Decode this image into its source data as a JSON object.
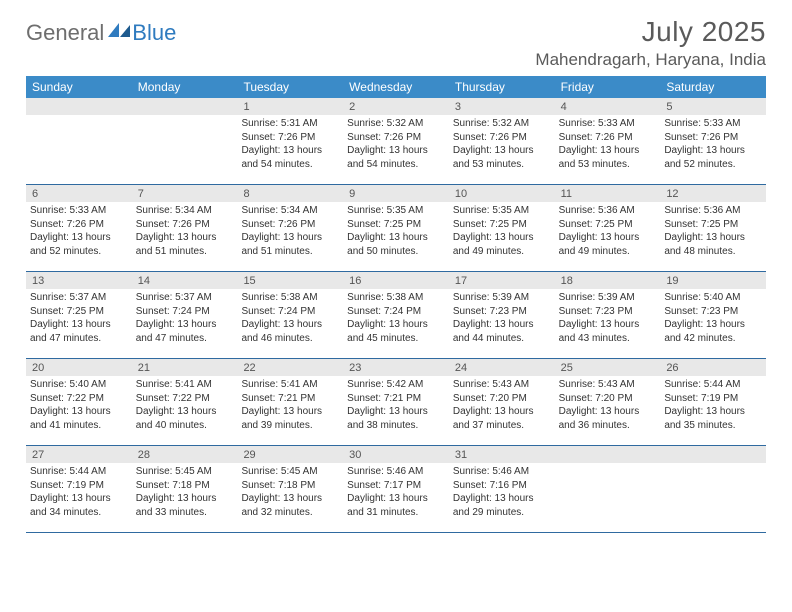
{
  "brand": {
    "part1": "General",
    "part2": "Blue"
  },
  "title": "July 2025",
  "location": "Mahendragarh, Haryana, India",
  "colors": {
    "header_bg": "#3b8bc8",
    "row_border": "#2f6aa0",
    "daynum_bg": "#e8e8e8",
    "text": "#333333",
    "title_text": "#5a5a5a"
  },
  "weekdays": [
    "Sunday",
    "Monday",
    "Tuesday",
    "Wednesday",
    "Thursday",
    "Friday",
    "Saturday"
  ],
  "weeks": [
    [
      {
        "n": "",
        "lines": []
      },
      {
        "n": "",
        "lines": []
      },
      {
        "n": "1",
        "lines": [
          "Sunrise: 5:31 AM",
          "Sunset: 7:26 PM",
          "Daylight: 13 hours and 54 minutes."
        ]
      },
      {
        "n": "2",
        "lines": [
          "Sunrise: 5:32 AM",
          "Sunset: 7:26 PM",
          "Daylight: 13 hours and 54 minutes."
        ]
      },
      {
        "n": "3",
        "lines": [
          "Sunrise: 5:32 AM",
          "Sunset: 7:26 PM",
          "Daylight: 13 hours and 53 minutes."
        ]
      },
      {
        "n": "4",
        "lines": [
          "Sunrise: 5:33 AM",
          "Sunset: 7:26 PM",
          "Daylight: 13 hours and 53 minutes."
        ]
      },
      {
        "n": "5",
        "lines": [
          "Sunrise: 5:33 AM",
          "Sunset: 7:26 PM",
          "Daylight: 13 hours and 52 minutes."
        ]
      }
    ],
    [
      {
        "n": "6",
        "lines": [
          "Sunrise: 5:33 AM",
          "Sunset: 7:26 PM",
          "Daylight: 13 hours and 52 minutes."
        ]
      },
      {
        "n": "7",
        "lines": [
          "Sunrise: 5:34 AM",
          "Sunset: 7:26 PM",
          "Daylight: 13 hours and 51 minutes."
        ]
      },
      {
        "n": "8",
        "lines": [
          "Sunrise: 5:34 AM",
          "Sunset: 7:26 PM",
          "Daylight: 13 hours and 51 minutes."
        ]
      },
      {
        "n": "9",
        "lines": [
          "Sunrise: 5:35 AM",
          "Sunset: 7:25 PM",
          "Daylight: 13 hours and 50 minutes."
        ]
      },
      {
        "n": "10",
        "lines": [
          "Sunrise: 5:35 AM",
          "Sunset: 7:25 PM",
          "Daylight: 13 hours and 49 minutes."
        ]
      },
      {
        "n": "11",
        "lines": [
          "Sunrise: 5:36 AM",
          "Sunset: 7:25 PM",
          "Daylight: 13 hours and 49 minutes."
        ]
      },
      {
        "n": "12",
        "lines": [
          "Sunrise: 5:36 AM",
          "Sunset: 7:25 PM",
          "Daylight: 13 hours and 48 minutes."
        ]
      }
    ],
    [
      {
        "n": "13",
        "lines": [
          "Sunrise: 5:37 AM",
          "Sunset: 7:25 PM",
          "Daylight: 13 hours and 47 minutes."
        ]
      },
      {
        "n": "14",
        "lines": [
          "Sunrise: 5:37 AM",
          "Sunset: 7:24 PM",
          "Daylight: 13 hours and 47 minutes."
        ]
      },
      {
        "n": "15",
        "lines": [
          "Sunrise: 5:38 AM",
          "Sunset: 7:24 PM",
          "Daylight: 13 hours and 46 minutes."
        ]
      },
      {
        "n": "16",
        "lines": [
          "Sunrise: 5:38 AM",
          "Sunset: 7:24 PM",
          "Daylight: 13 hours and 45 minutes."
        ]
      },
      {
        "n": "17",
        "lines": [
          "Sunrise: 5:39 AM",
          "Sunset: 7:23 PM",
          "Daylight: 13 hours and 44 minutes."
        ]
      },
      {
        "n": "18",
        "lines": [
          "Sunrise: 5:39 AM",
          "Sunset: 7:23 PM",
          "Daylight: 13 hours and 43 minutes."
        ]
      },
      {
        "n": "19",
        "lines": [
          "Sunrise: 5:40 AM",
          "Sunset: 7:23 PM",
          "Daylight: 13 hours and 42 minutes."
        ]
      }
    ],
    [
      {
        "n": "20",
        "lines": [
          "Sunrise: 5:40 AM",
          "Sunset: 7:22 PM",
          "Daylight: 13 hours and 41 minutes."
        ]
      },
      {
        "n": "21",
        "lines": [
          "Sunrise: 5:41 AM",
          "Sunset: 7:22 PM",
          "Daylight: 13 hours and 40 minutes."
        ]
      },
      {
        "n": "22",
        "lines": [
          "Sunrise: 5:41 AM",
          "Sunset: 7:21 PM",
          "Daylight: 13 hours and 39 minutes."
        ]
      },
      {
        "n": "23",
        "lines": [
          "Sunrise: 5:42 AM",
          "Sunset: 7:21 PM",
          "Daylight: 13 hours and 38 minutes."
        ]
      },
      {
        "n": "24",
        "lines": [
          "Sunrise: 5:43 AM",
          "Sunset: 7:20 PM",
          "Daylight: 13 hours and 37 minutes."
        ]
      },
      {
        "n": "25",
        "lines": [
          "Sunrise: 5:43 AM",
          "Sunset: 7:20 PM",
          "Daylight: 13 hours and 36 minutes."
        ]
      },
      {
        "n": "26",
        "lines": [
          "Sunrise: 5:44 AM",
          "Sunset: 7:19 PM",
          "Daylight: 13 hours and 35 minutes."
        ]
      }
    ],
    [
      {
        "n": "27",
        "lines": [
          "Sunrise: 5:44 AM",
          "Sunset: 7:19 PM",
          "Daylight: 13 hours and 34 minutes."
        ]
      },
      {
        "n": "28",
        "lines": [
          "Sunrise: 5:45 AM",
          "Sunset: 7:18 PM",
          "Daylight: 13 hours and 33 minutes."
        ]
      },
      {
        "n": "29",
        "lines": [
          "Sunrise: 5:45 AM",
          "Sunset: 7:18 PM",
          "Daylight: 13 hours and 32 minutes."
        ]
      },
      {
        "n": "30",
        "lines": [
          "Sunrise: 5:46 AM",
          "Sunset: 7:17 PM",
          "Daylight: 13 hours and 31 minutes."
        ]
      },
      {
        "n": "31",
        "lines": [
          "Sunrise: 5:46 AM",
          "Sunset: 7:16 PM",
          "Daylight: 13 hours and 29 minutes."
        ]
      },
      {
        "n": "",
        "lines": []
      },
      {
        "n": "",
        "lines": []
      }
    ]
  ]
}
